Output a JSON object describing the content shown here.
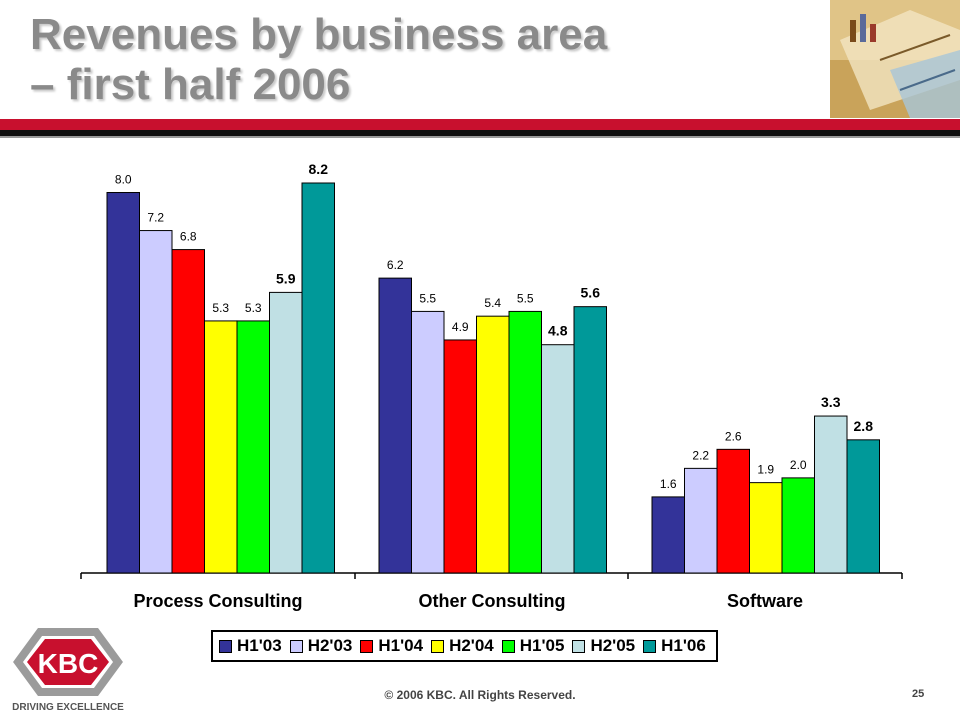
{
  "slide": {
    "title_line1": "Revenues by business area",
    "title_line2": "– first half 2006",
    "copyright": "© 2006 KBC. All Rights Reserved.",
    "page_number": "25",
    "logo_text": "KBC",
    "tagline": "DRIVING EXCELLENCE"
  },
  "chart_data": {
    "type": "bar",
    "categories": [
      "Process Consulting",
      "Other Consulting",
      "Software"
    ],
    "series": [
      {
        "name": "H1'03",
        "color": "#333399",
        "values": [
          8.0,
          6.2,
          1.6
        ]
      },
      {
        "name": "H2'03",
        "color": "#ccccff",
        "values": [
          7.2,
          5.5,
          2.2
        ]
      },
      {
        "name": "H1'04",
        "color": "#ff0000",
        "values": [
          6.8,
          4.9,
          2.6
        ]
      },
      {
        "name": "H2'04",
        "color": "#ffff00",
        "values": [
          5.3,
          5.4,
          1.9
        ]
      },
      {
        "name": "H1'05",
        "color": "#00ff00",
        "values": [
          5.3,
          5.5,
          2.0
        ]
      },
      {
        "name": "H2'05",
        "color": "#c0e0e4",
        "values": [
          5.9,
          4.8,
          3.3
        ]
      },
      {
        "name": "H1'06",
        "color": "#009999",
        "values": [
          8.2,
          5.6,
          2.8
        ]
      }
    ],
    "value_labels": [
      [
        "8.0",
        "6.2",
        "1.6"
      ],
      [
        "7.2",
        "5.5",
        "2.2"
      ],
      [
        "6.8",
        "4.9",
        "2.6"
      ],
      [
        "5.3",
        "5.4",
        "1.9"
      ],
      [
        "5.3",
        "5.5",
        "2.0"
      ],
      [
        "5.9",
        "4.8",
        "3.3"
      ],
      [
        "8.2",
        "5.6",
        "2.8"
      ]
    ],
    "bold_series_labels": [
      "H2'05",
      "H1'06"
    ],
    "ylim": [
      0,
      8.6
    ],
    "grid": false,
    "legend_position": "bottom"
  }
}
